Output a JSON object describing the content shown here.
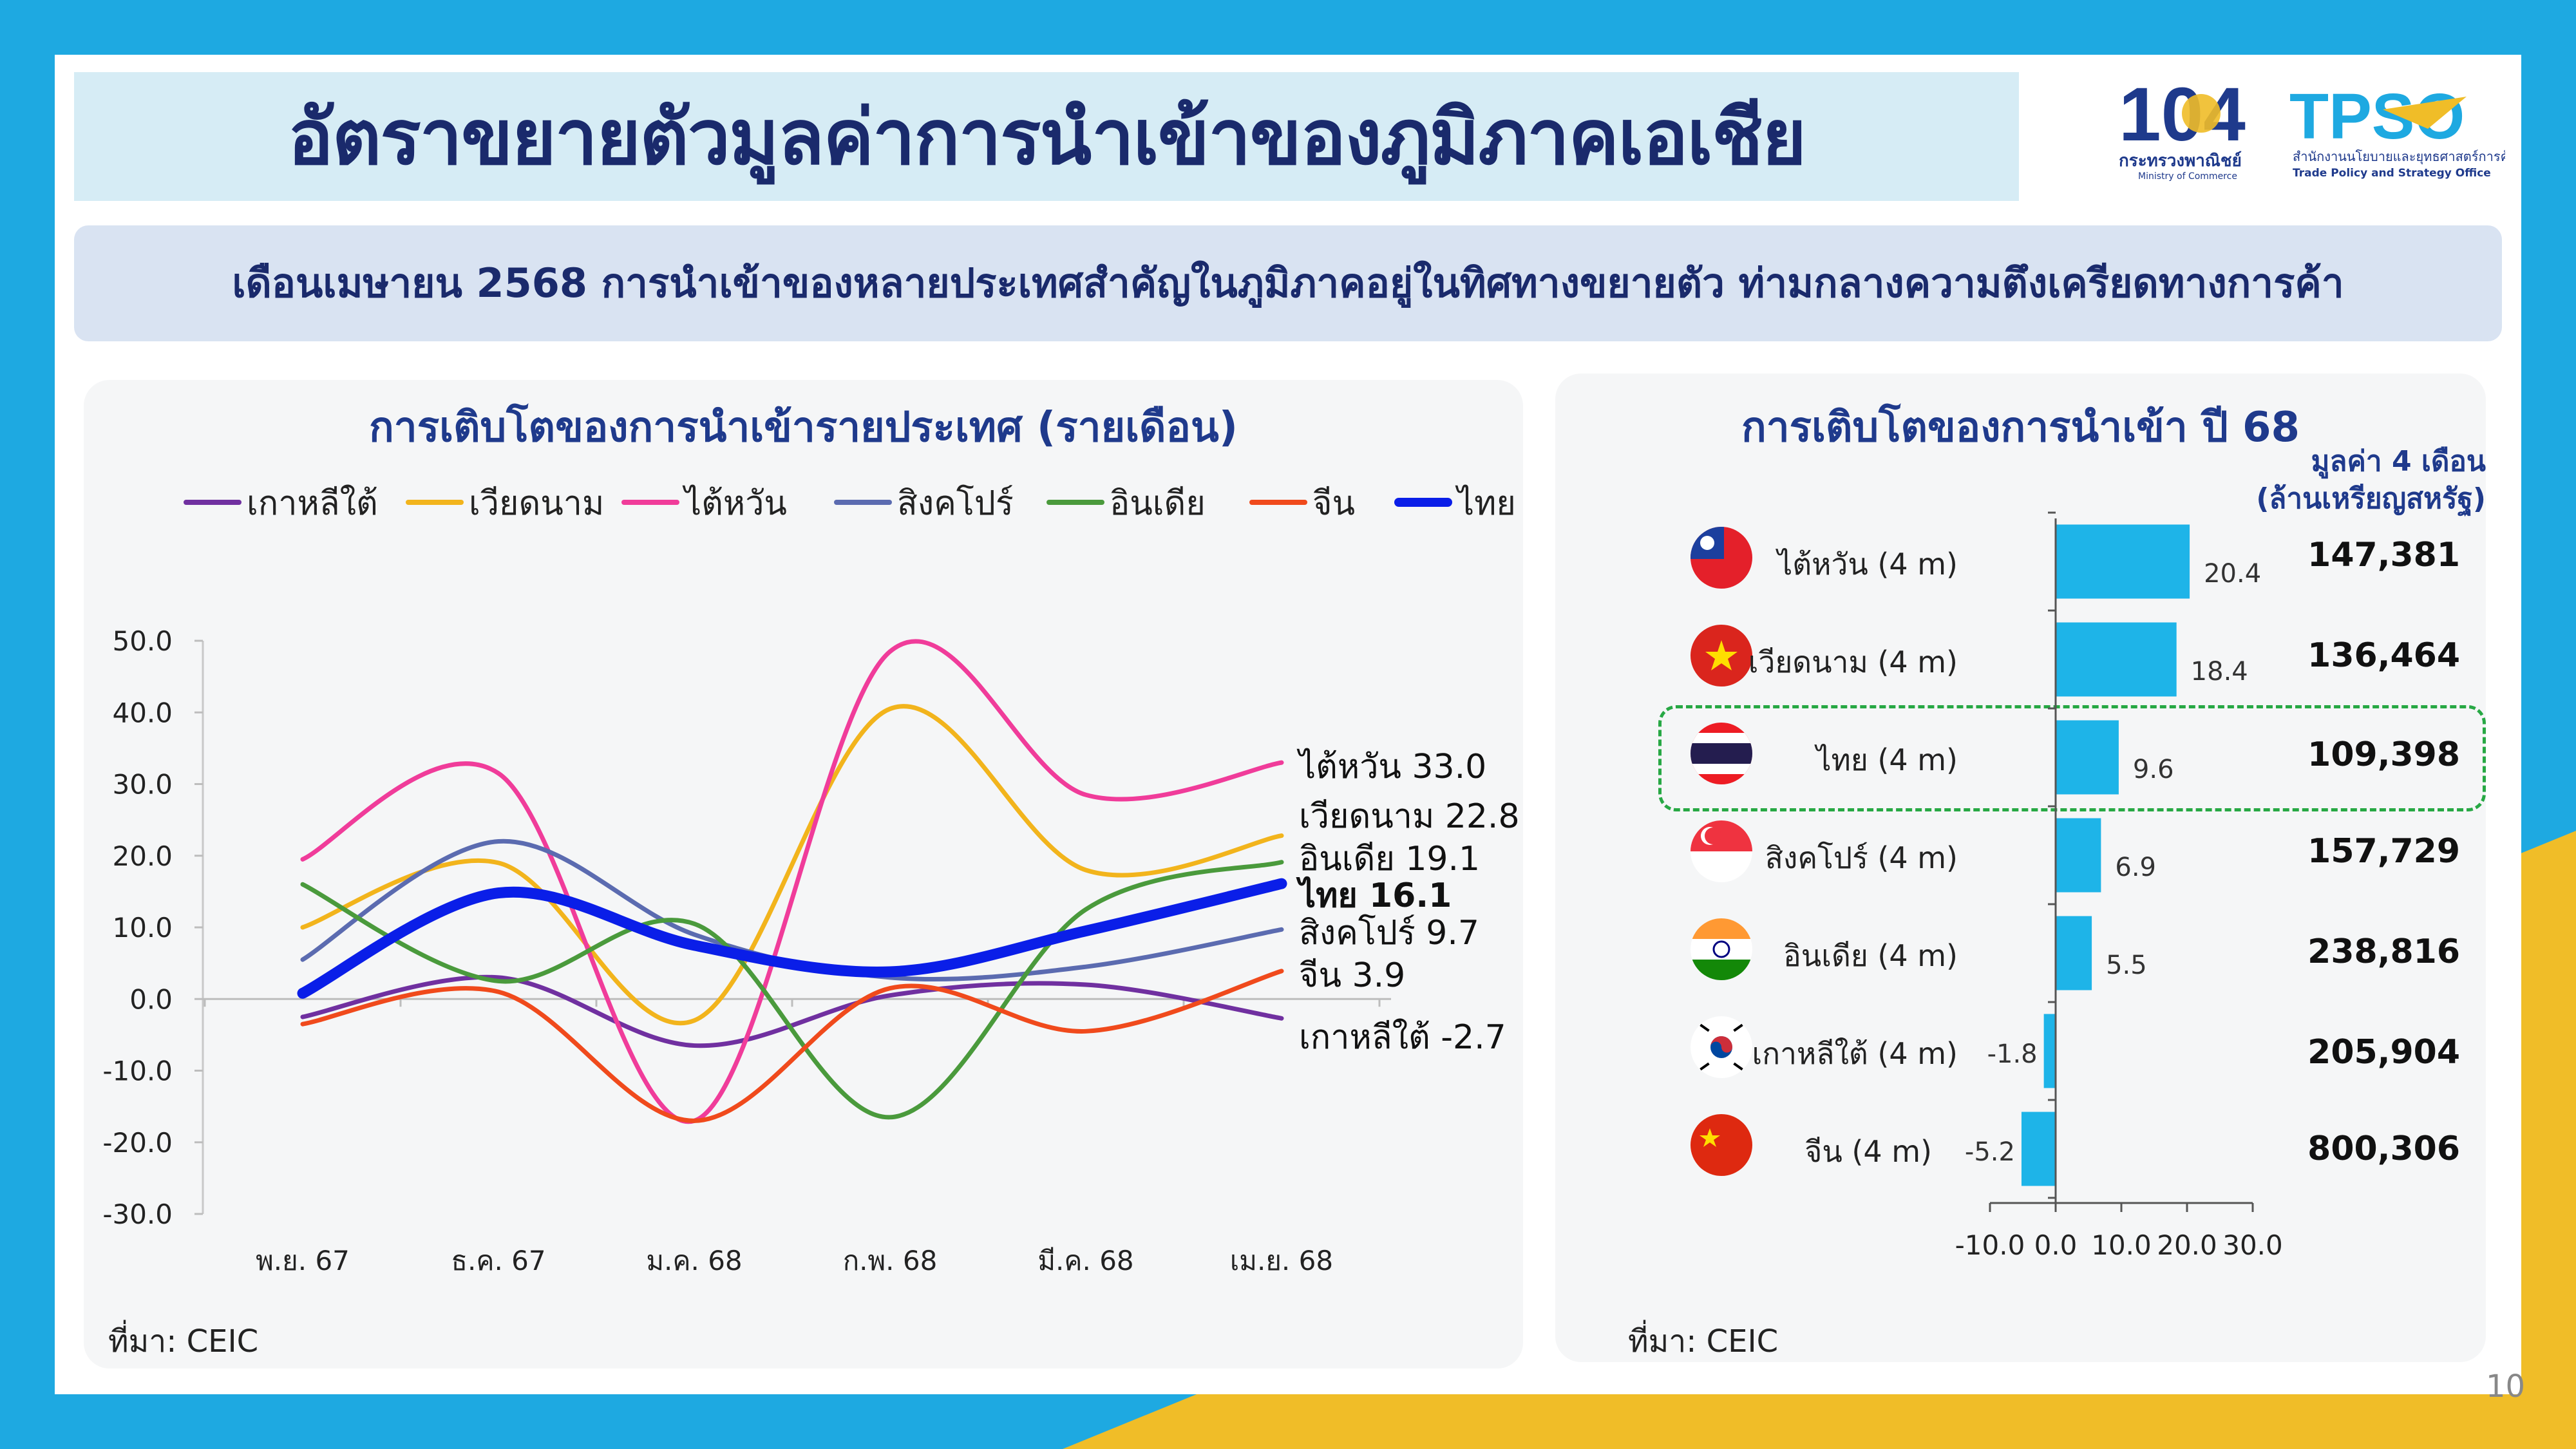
{
  "title": "อัตราขยายตัวมูลค่าการนำเข้าของภูมิภาคเอเชีย",
  "subtitle": "เดือนเมษายน 2568 การนำเข้าของหลายประเทศสำคัญในภูมิภาคอยู่ในทิศทางขยายตัว ท่ามกลางความตึงเครียดทางการค้า",
  "logos": {
    "moc_number": "104",
    "moc_name": "กระทรวงพาณิชย์",
    "moc_name_en": "Ministry of Commerce",
    "tpso_name": "TPSO",
    "tpso_thai": "สำนักงานนโยบายและยุทธศาสตร์การค้า",
    "tpso_en": "Trade Policy and Strategy Office"
  },
  "left_panel": {
    "title": "การเติบโตของการนำเข้ารายประเทศ (รายเดือน)",
    "source": "ที่มา: CEIC"
  },
  "right_panel": {
    "title": "การเติบโตของการนำเข้า ปี 68",
    "value_header_1": "มูลค่า 4 เดือน",
    "value_header_2": "(ล้านเหรียญสหรัฐ)",
    "source": "ที่มา: CEIC"
  },
  "page_number": "10",
  "colors": {
    "korea": "#7030a0",
    "vietnam": "#f2b41c",
    "taiwan": "#f03c9a",
    "singapore": "#5b6bb0",
    "india": "#4a9a3c",
    "china": "#f04a1c",
    "thailand": "#0a1ee8",
    "bar": "#1eb4e8",
    "title_navy": "#1a2a6c",
    "highlight": "#27a844"
  },
  "chart_data": [
    {
      "type": "line",
      "title": "การเติบโตของการนำเข้ารายประเทศ (รายเดือน)",
      "categories": [
        "พ.ย. 67",
        "ธ.ค. 67",
        "ม.ค. 68",
        "ก.พ. 68",
        "มี.ค. 68",
        "เม.ย. 68"
      ],
      "ylim": [
        -30,
        50
      ],
      "yticks": [
        "50.0",
        "40.0",
        "30.0",
        "20.0",
        "10.0",
        "0.0",
        "-10.0",
        "-20.0",
        "-30.0"
      ],
      "series": [
        {
          "key": "korea",
          "name": "เกาหลีใต้",
          "values": [
            -2.5,
            3.0,
            -6.5,
            0.5,
            2.0,
            -2.7
          ],
          "end_label": "เกาหลีใต้ -2.7"
        },
        {
          "key": "vietnam",
          "name": "เวียดนาม",
          "values": [
            10.0,
            19.0,
            -3.0,
            40.5,
            18.0,
            22.8
          ],
          "end_label": "เวียดนาม 22.8"
        },
        {
          "key": "taiwan",
          "name": "ไต้หวัน",
          "values": [
            19.5,
            31.5,
            -17.0,
            48.5,
            28.5,
            33.0
          ],
          "end_label": "ไต้หวัน 33.0"
        },
        {
          "key": "singapore",
          "name": "สิงคโปร์",
          "values": [
            5.5,
            22.0,
            9.0,
            3.0,
            4.5,
            9.7
          ],
          "end_label": "สิงคโปร์ 9.7"
        },
        {
          "key": "india",
          "name": "อินเดีย",
          "values": [
            16.0,
            2.5,
            10.5,
            -16.5,
            12.5,
            19.1
          ],
          "end_label": "อินเดีย 19.1"
        },
        {
          "key": "china",
          "name": "จีน",
          "values": [
            -3.5,
            1.0,
            -17.0,
            1.5,
            -4.5,
            3.9
          ],
          "end_label": "จีน 3.9"
        },
        {
          "key": "thailand",
          "name": "ไทย",
          "values": [
            0.8,
            14.8,
            7.5,
            3.8,
            9.5,
            16.1
          ],
          "end_label": "ไทย 16.1"
        }
      ]
    },
    {
      "type": "bar",
      "orientation": "horizontal",
      "title": "การเติบโตของการนำเข้า ปี 68",
      "categories": [
        "ไต้หวัน (4 m)",
        "เวียดนาม (4 m)",
        "ไทย (4 m)",
        "สิงคโปร์ (4 m)",
        "อินเดีย (4 m)",
        "เกาหลีใต้ (4 m)",
        "จีน (4 m)"
      ],
      "values": [
        20.4,
        18.4,
        9.6,
        6.9,
        5.5,
        -1.8,
        -5.2
      ],
      "value_labels": [
        "20.4",
        "18.4",
        "9.6",
        "6.9",
        "5.5",
        "-1.8",
        "-5.2"
      ],
      "totals": [
        "147,381",
        "136,464",
        "109,398",
        "157,729",
        "238,816",
        "205,904",
        "800,306"
      ],
      "xlim": [
        -10,
        30
      ],
      "xticks": [
        "-10.0",
        "0.0",
        "10.0",
        "20.0",
        "30.0"
      ],
      "highlight": "ไทย (4 m)"
    }
  ]
}
